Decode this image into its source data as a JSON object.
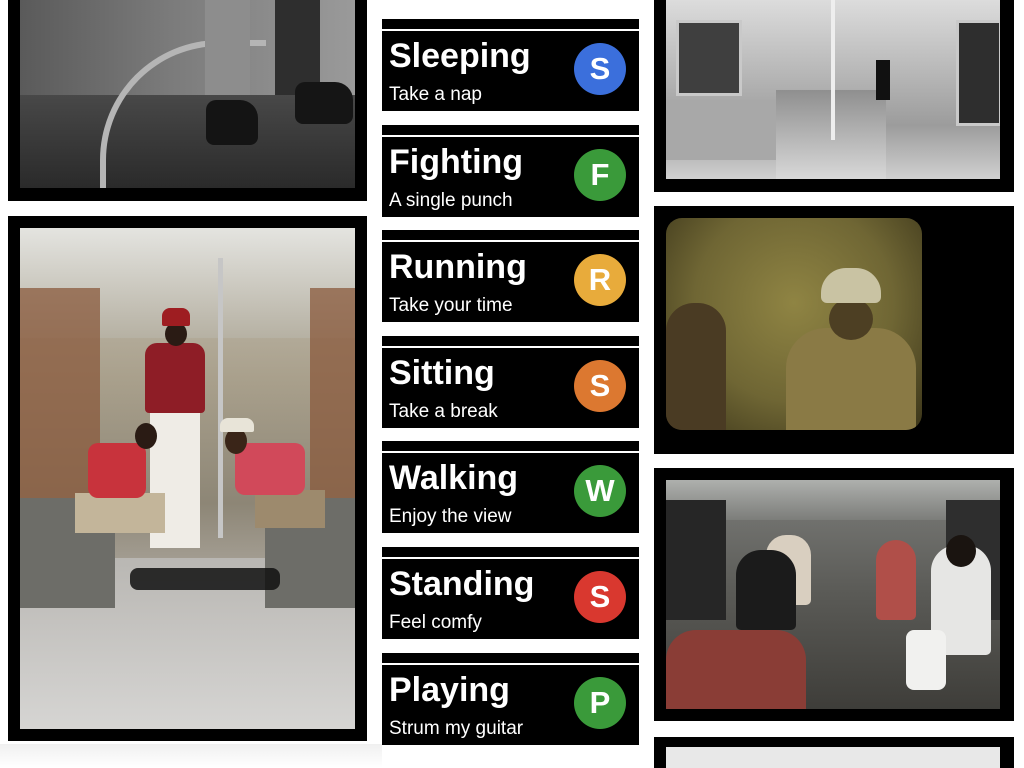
{
  "signs": [
    {
      "title": "Sleeping",
      "subtitle": "Take a nap",
      "letter": "S",
      "color": "#3b6fdc"
    },
    {
      "title": "Fighting",
      "subtitle": "A single punch",
      "letter": "F",
      "color": "#3a9a3a"
    },
    {
      "title": "Running",
      "subtitle": "Take your time",
      "letter": "R",
      "color": "#e8ab3b"
    },
    {
      "title": "Sitting",
      "subtitle": "Take a break",
      "letter": "S",
      "color": "#dc7830"
    },
    {
      "title": "Walking",
      "subtitle": "Enjoy the view",
      "letter": "W",
      "color": "#3a9a3a"
    },
    {
      "title": "Standing",
      "subtitle": "Feel comfy",
      "letter": "S",
      "color": "#d9382f"
    },
    {
      "title": "Playing",
      "subtitle": "Strum my guitar",
      "letter": "P",
      "color": "#3a9a3a"
    }
  ],
  "colors": {
    "sign_background": "#000000",
    "page_background": "#ffffff",
    "text": "#ffffff"
  }
}
